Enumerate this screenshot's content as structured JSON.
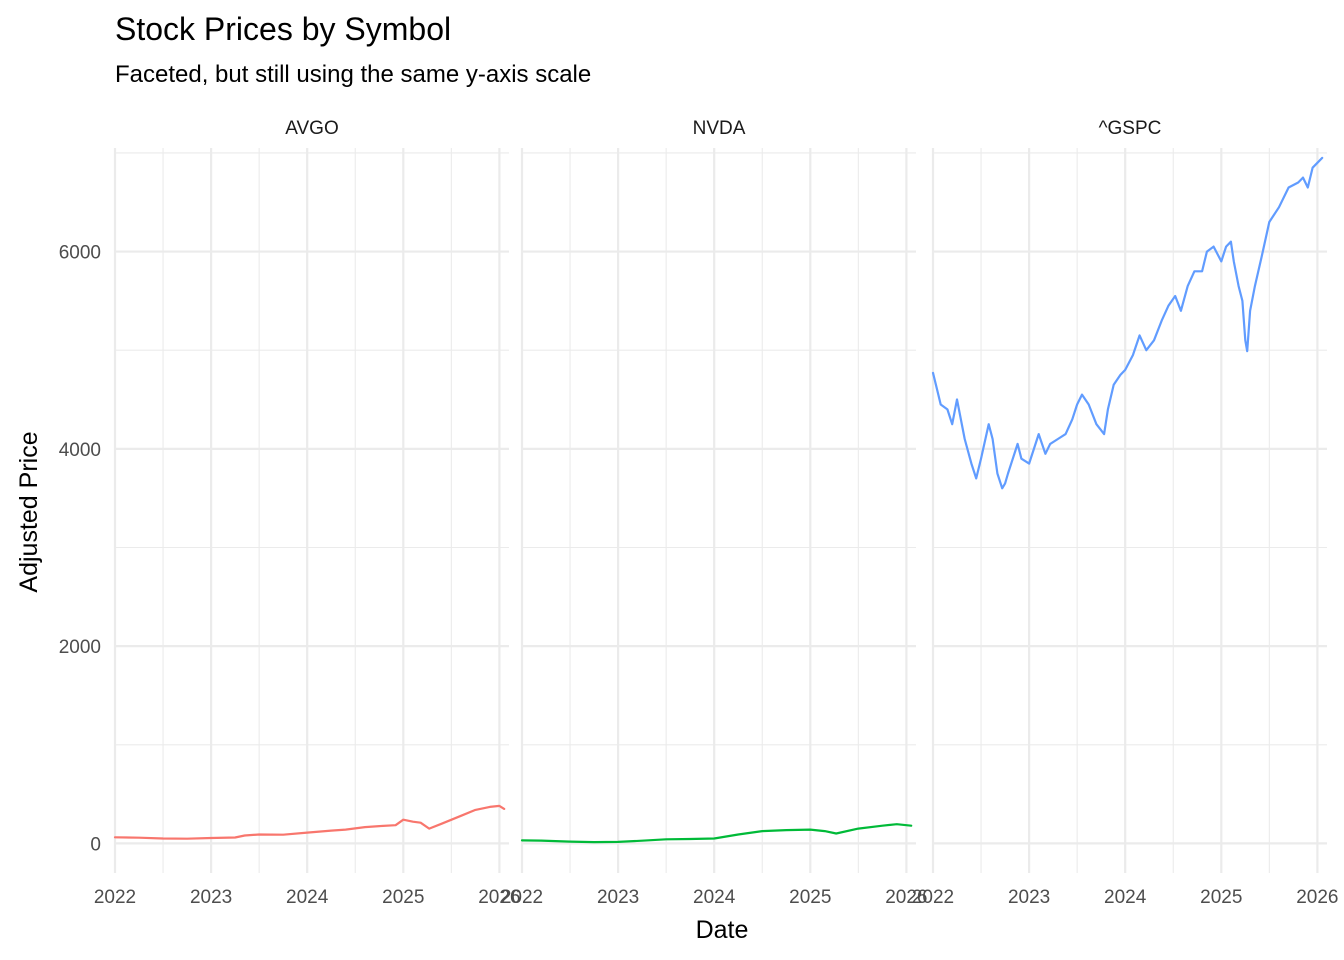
{
  "chart_data": {
    "type": "line",
    "title": "Stock Prices by Symbol",
    "subtitle": "Faceted, but still using the same y-axis scale",
    "xlabel": "Date",
    "ylabel": "Adjusted Price",
    "xlim": [
      2022.0,
      2026.1
    ],
    "ylim": [
      -300,
      7050
    ],
    "x_ticks": [
      2022,
      2023,
      2024,
      2025,
      2026
    ],
    "x_tick_labels": [
      "2022",
      "2023",
      "2024",
      "2025",
      "2026"
    ],
    "y_ticks": [
      0,
      2000,
      4000,
      6000
    ],
    "y_tick_labels": [
      "0",
      "2000",
      "4000",
      "6000"
    ],
    "y_minor_ticks": [
      1000,
      3000,
      5000,
      7000
    ],
    "grid": true,
    "legend": "none",
    "facets": [
      "AVGO",
      "NVDA",
      "^GSPC"
    ],
    "series": [
      {
        "name": "AVGO",
        "color": "#F8766D",
        "x": [
          2022.0,
          2022.25,
          2022.5,
          2022.75,
          2023.0,
          2023.25,
          2023.35,
          2023.5,
          2023.75,
          2024.0,
          2024.25,
          2024.4,
          2024.6,
          2024.75,
          2024.92,
          2025.0,
          2025.1,
          2025.18,
          2025.27,
          2025.4,
          2025.6,
          2025.75,
          2025.9,
          2026.0,
          2026.05
        ],
        "values": [
          62,
          58,
          50,
          48,
          55,
          60,
          80,
          90,
          88,
          110,
          130,
          140,
          165,
          175,
          185,
          240,
          220,
          210,
          150,
          200,
          280,
          340,
          370,
          380,
          350
        ]
      },
      {
        "name": "NVDA",
        "color": "#00BA38",
        "x": [
          2022.0,
          2022.2,
          2022.5,
          2022.75,
          2023.0,
          2023.25,
          2023.5,
          2023.75,
          2024.0,
          2024.25,
          2024.5,
          2024.75,
          2025.0,
          2025.15,
          2025.27,
          2025.5,
          2025.75,
          2025.9,
          2026.0,
          2026.05
        ],
        "values": [
          30,
          28,
          18,
          13,
          15,
          27,
          42,
          45,
          50,
          90,
          125,
          135,
          140,
          125,
          100,
          150,
          180,
          195,
          185,
          180
        ]
      },
      {
        "name": "^GSPC",
        "color": "#619CFF",
        "x": [
          2022.0,
          2022.03,
          2022.08,
          2022.15,
          2022.2,
          2022.25,
          2022.33,
          2022.4,
          2022.45,
          2022.5,
          2022.58,
          2022.62,
          2022.67,
          2022.72,
          2022.75,
          2022.78,
          2022.83,
          2022.88,
          2022.92,
          2023.0,
          2023.05,
          2023.1,
          2023.17,
          2023.22,
          2023.3,
          2023.38,
          2023.45,
          2023.5,
          2023.55,
          2023.62,
          2023.7,
          2023.78,
          2023.82,
          2023.88,
          2023.95,
          2024.0,
          2024.08,
          2024.15,
          2024.22,
          2024.3,
          2024.38,
          2024.45,
          2024.52,
          2024.58,
          2024.65,
          2024.72,
          2024.8,
          2024.85,
          2024.92,
          2025.0,
          2025.05,
          2025.1,
          2025.13,
          2025.18,
          2025.22,
          2025.25,
          2025.27,
          2025.3,
          2025.35,
          2025.42,
          2025.5,
          2025.6,
          2025.7,
          2025.8,
          2025.85,
          2025.9,
          2025.95,
          2026.0,
          2026.05
        ],
        "values": [
          4770,
          4650,
          4450,
          4400,
          4250,
          4500,
          4100,
          3850,
          3700,
          3900,
          4250,
          4100,
          3750,
          3600,
          3650,
          3750,
          3900,
          4050,
          3900,
          3850,
          4000,
          4150,
          3950,
          4050,
          4100,
          4150,
          4300,
          4450,
          4550,
          4450,
          4250,
          4150,
          4400,
          4650,
          4750,
          4800,
          4950,
          5150,
          5000,
          5100,
          5300,
          5450,
          5550,
          5400,
          5650,
          5800,
          5800,
          6000,
          6050,
          5900,
          6050,
          6100,
          5900,
          5650,
          5500,
          5100,
          4990,
          5400,
          5650,
          5950,
          6300,
          6450,
          6650,
          6700,
          6750,
          6650,
          6850,
          6900,
          6950
        ]
      }
    ]
  }
}
